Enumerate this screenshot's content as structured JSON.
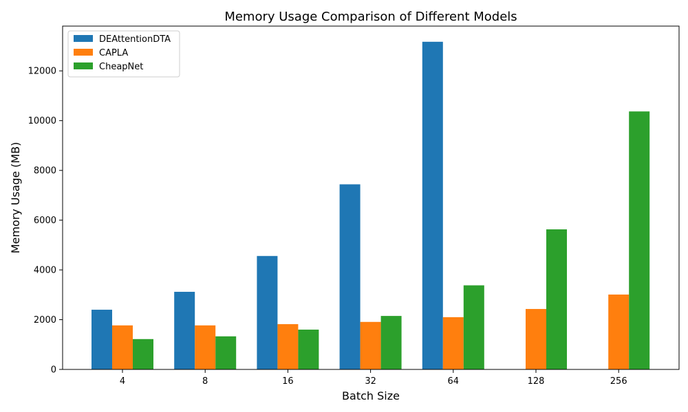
{
  "chart_data": {
    "type": "bar",
    "title": "Memory Usage Comparison of Different Models",
    "xlabel": "Batch Size",
    "ylabel": "Memory Usage (MB)",
    "categories": [
      "4",
      "8",
      "16",
      "32",
      "64",
      "128",
      "256"
    ],
    "ylim": [
      0,
      13800
    ],
    "yticks": [
      0,
      2000,
      4000,
      6000,
      8000,
      10000,
      12000
    ],
    "legend_position": "top-left",
    "grid": false,
    "series": [
      {
        "name": "DEAttentionDTA",
        "color": "#1f77b4",
        "values": [
          2400,
          3120,
          4560,
          7440,
          13170,
          null,
          null
        ]
      },
      {
        "name": "CAPLA",
        "color": "#ff7f0e",
        "values": [
          1770,
          1770,
          1820,
          1910,
          2100,
          2430,
          3010
        ]
      },
      {
        "name": "CheapNet",
        "color": "#2ca02c",
        "values": [
          1220,
          1330,
          1600,
          2150,
          3380,
          5630,
          10370
        ]
      }
    ]
  }
}
